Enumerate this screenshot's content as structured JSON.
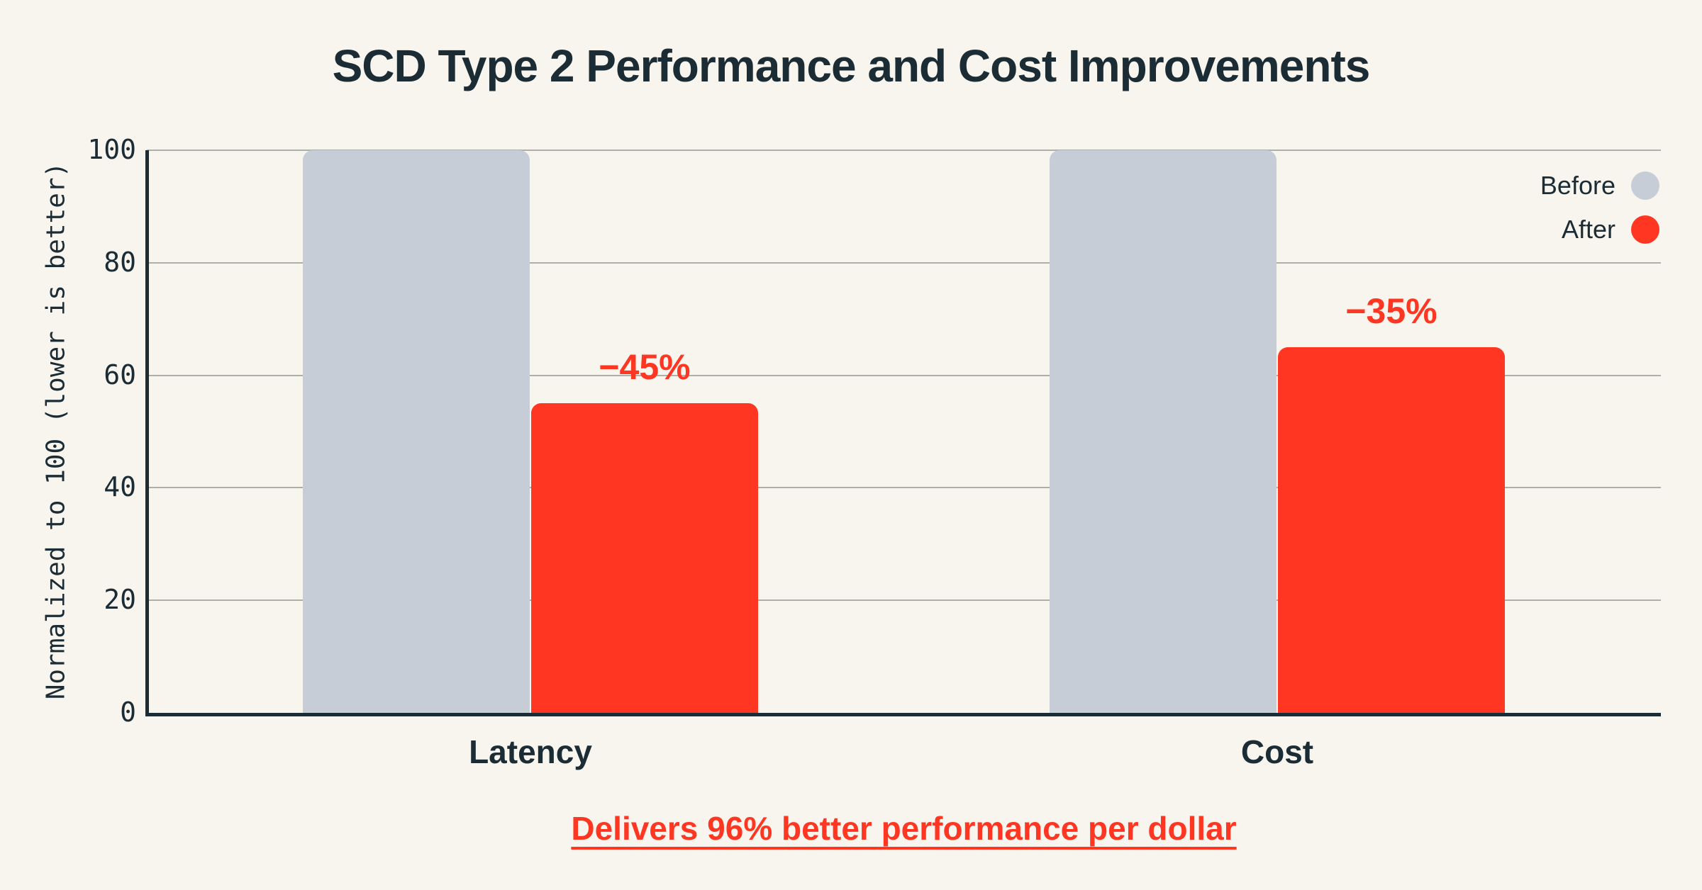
{
  "chart_data": {
    "type": "bar",
    "title": "SCD Type 2 Performance and Cost Improvements",
    "ylabel": "Normalized to 100 (lower is better)",
    "caption": "Delivers 96% better performance per dollar",
    "categories": [
      "Latency",
      "Cost"
    ],
    "series": [
      {
        "name": "Before",
        "color": "#C6CDD7",
        "values": [
          100,
          100
        ],
        "labels": [
          "",
          ""
        ]
      },
      {
        "name": "After",
        "color": "#FF3621",
        "values": [
          55,
          65
        ],
        "labels": [
          "−45%",
          "−35%"
        ]
      }
    ],
    "yticks": [
      0,
      20,
      40,
      60,
      80,
      100
    ],
    "ylim": [
      0,
      100
    ],
    "grid": true,
    "legend_position": "top-right",
    "colors": {
      "background": "#F8F5EF",
      "text": "#1B2C34",
      "accent": "#FF3621",
      "muted_bar": "#C6CDD7",
      "gridline": "#AEAEAB"
    }
  }
}
